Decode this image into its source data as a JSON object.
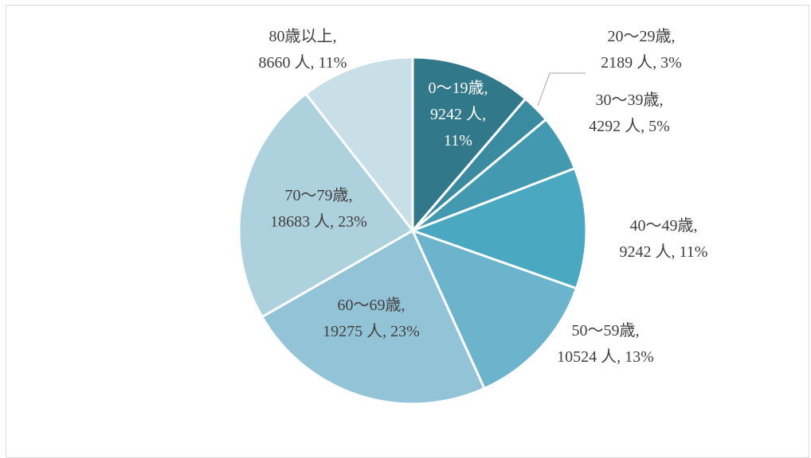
{
  "chart_data": {
    "type": "pie",
    "categories": [
      "0～19歳,",
      "20～29歳,",
      "30～39歳,",
      "40～49歳,",
      "50～59歳,",
      "60～69歳,",
      "70～79歳,",
      "80歳以上,"
    ],
    "values": [
      9242,
      2189,
      4292,
      9242,
      10524,
      19275,
      18683,
      8660
    ],
    "value_labels": [
      "9242 人, 11%",
      "2189 人, 3%",
      "4292 人, 5%",
      "9242 人, 11%",
      "10524 人, 13%",
      "19275 人, 23%",
      "18683 人, 23%",
      "8660 人, 11%"
    ],
    "colors": [
      "#31788a",
      "#3a8ba0",
      "#4399b0",
      "#4aa8c0",
      "#6bb4cb",
      "#93c3d6",
      "#aed1de",
      "#c8dfe7"
    ]
  }
}
